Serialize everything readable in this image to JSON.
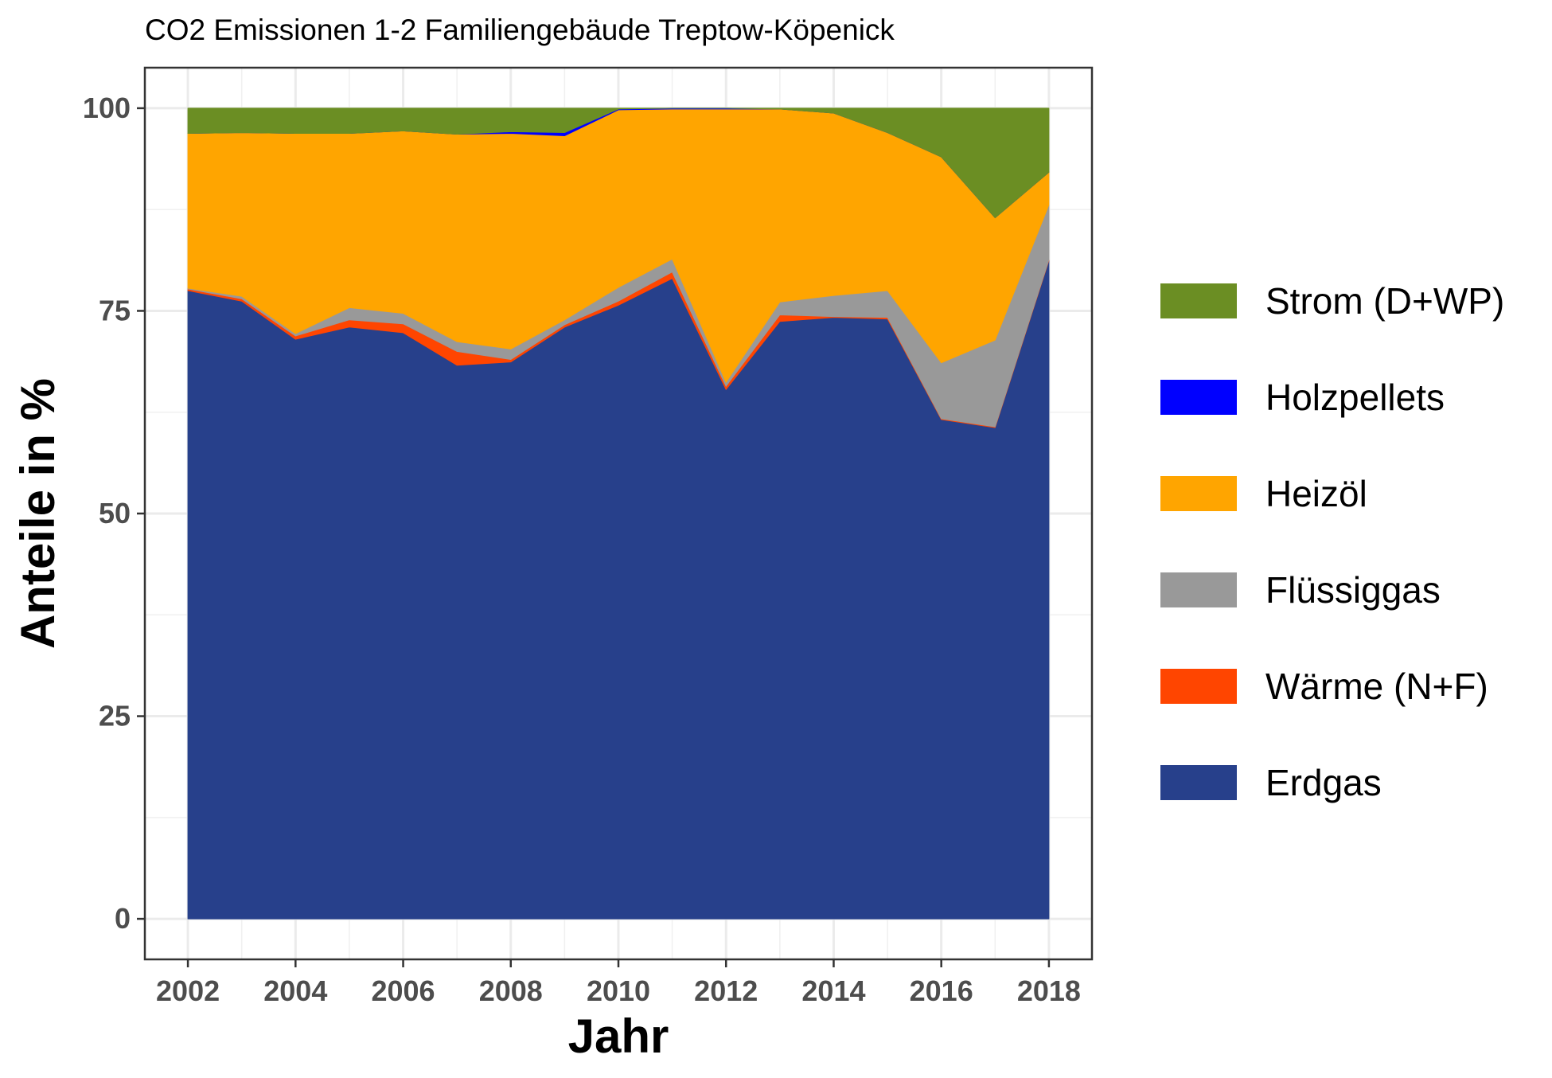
{
  "chart_data": {
    "type": "area",
    "title": "CO2 Emissionen 1-2 Familiengebäude Treptow-Köpenick",
    "xlabel": "Jahr",
    "ylabel": "Anteile in %",
    "x": [
      2002,
      2003,
      2004,
      2005,
      2006,
      2007,
      2008,
      2009,
      2010,
      2011,
      2012,
      2013,
      2014,
      2015,
      2016,
      2017,
      2018
    ],
    "xlim": [
      2001.2,
      2018.8
    ],
    "ylim": [
      -5,
      105
    ],
    "x_ticks": [
      "2002",
      "2004",
      "2006",
      "2008",
      "2010",
      "2012",
      "2014",
      "2016",
      "2018"
    ],
    "y_ticks": [
      "0",
      "25",
      "50",
      "75",
      "100"
    ],
    "stacked": true,
    "grid": true,
    "legend_position": "right",
    "series": [
      {
        "name": "Erdgas",
        "color": "#27408b",
        "values": [
          77.5,
          76.2,
          71.5,
          73.0,
          72.3,
          68.3,
          68.7,
          73.0,
          75.7,
          79.0,
          65.3,
          73.7,
          74.2,
          74.0,
          61.6,
          60.6,
          81.2
        ]
      },
      {
        "name": "Wärme (N+F)",
        "color": "#ff4500",
        "values": [
          0.2,
          0.3,
          0.4,
          0.9,
          1.1,
          1.7,
          0.3,
          0.3,
          0.5,
          0.8,
          0.4,
          0.8,
          0.1,
          0.2,
          0.1,
          0.1,
          0.1
        ]
      },
      {
        "name": "Flüssiggas",
        "color": "#999999",
        "values": [
          0.1,
          0.3,
          0.3,
          1.5,
          1.3,
          1.2,
          1.3,
          0.6,
          1.7,
          1.6,
          0.5,
          1.6,
          2.6,
          3.3,
          6.9,
          10.7,
          6.8
        ]
      },
      {
        "name": "Heizöl",
        "color": "#ffa500",
        "values": [
          19.1,
          20.2,
          24.7,
          21.5,
          22.5,
          25.6,
          26.6,
          22.7,
          21.9,
          18.5,
          33.7,
          23.8,
          22.5,
          19.5,
          25.4,
          15.1,
          4.0
        ]
      },
      {
        "name": "Holzpellets",
        "color": "#0000ff",
        "values": [
          0.0,
          0.0,
          0.0,
          0.0,
          0.0,
          0.0,
          0.2,
          0.4,
          0.1,
          0.1,
          0.1,
          0.0,
          0.0,
          0.0,
          0.0,
          0.0,
          0.0
        ]
      },
      {
        "name": "Strom (D+WP)",
        "color": "#6b8e23",
        "values": [
          3.1,
          3.0,
          3.1,
          3.1,
          2.8,
          3.2,
          2.9,
          3.0,
          0.1,
          0.0,
          0.0,
          0.1,
          0.6,
          3.0,
          6.0,
          13.5,
          7.9
        ]
      }
    ],
    "legend_order": [
      "Strom (D+WP)",
      "Holzpellets",
      "Heizöl",
      "Flüssiggas",
      "Wärme (N+F)",
      "Erdgas"
    ]
  }
}
